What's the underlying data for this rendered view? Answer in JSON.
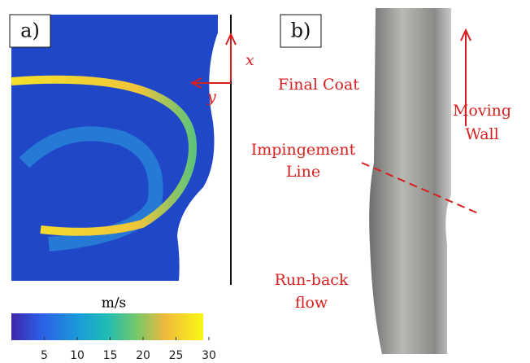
{
  "panel_a": {
    "label": "a)",
    "axis_x": "x",
    "axis_y": "y"
  },
  "colorbar": {
    "unit": "m/s",
    "ticks": [
      5,
      10,
      15,
      20,
      25,
      30
    ]
  },
  "panel_b": {
    "label": "b)",
    "annotations": [
      "Final Coat",
      "Impingement",
      "Line",
      "Run-back",
      "flow",
      "Moving",
      "Wall"
    ]
  }
}
